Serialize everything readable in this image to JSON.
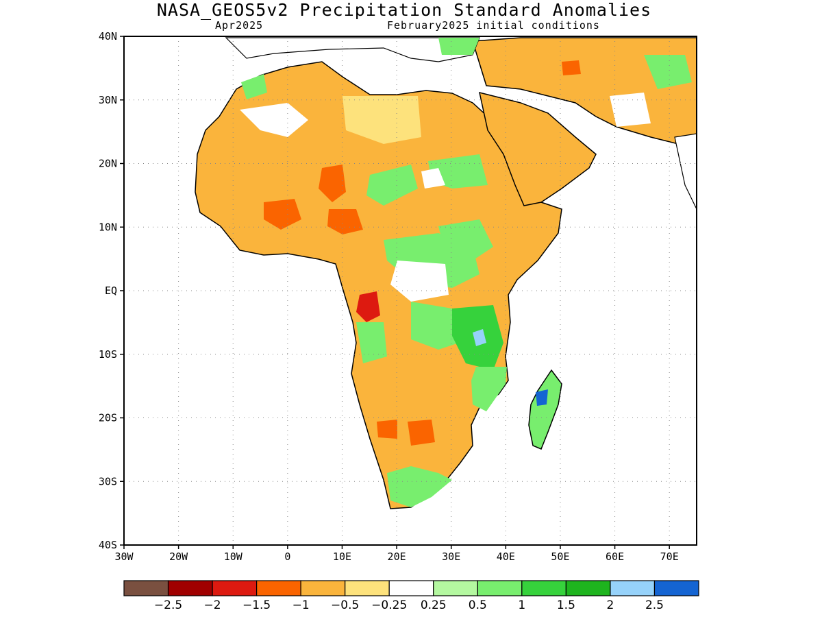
{
  "title": "NASA_GEOS5v2 Precipitation Standard Anomalies",
  "subtitle_left": "Apr2025",
  "subtitle_right": "February2025 initial conditions",
  "map": {
    "lon_range": [
      -30,
      75
    ],
    "lat_range": [
      -40,
      40
    ],
    "lat_ticks": [
      "40N",
      "30N",
      "20N",
      "10N",
      "EQ",
      "10S",
      "20S",
      "30S",
      "40S"
    ],
    "lon_ticks": [
      "30W",
      "20W",
      "10W",
      "0",
      "10E",
      "20E",
      "30E",
      "40E",
      "50E",
      "60E",
      "70E"
    ],
    "grid": "dotted"
  },
  "colorbar": {
    "labels": [
      "−2.5",
      "−2",
      "−1.5",
      "−1",
      "−0.5",
      "−0.25",
      "0.25",
      "0.5",
      "1",
      "1.5",
      "2",
      "2.5"
    ],
    "colors": [
      "#7a5040",
      "#a00000",
      "#dd1a10",
      "#fa6400",
      "#fab43c",
      "#fde27c",
      "#ffffff",
      "#b4f8a0",
      "#78ee6e",
      "#36d23c",
      "#1eb41e",
      "#96d2fa",
      "#1464d2"
    ]
  },
  "palette": {
    "orange": "#fab43c",
    "yellow": "#fde27c",
    "dark_orange": "#fa6400",
    "red": "#dd1a10",
    "light_green": "#b4f8a0",
    "green": "#78ee6e",
    "dark_green": "#36d23c",
    "blue": "#1464d2",
    "light_blue": "#96d2fa"
  }
}
